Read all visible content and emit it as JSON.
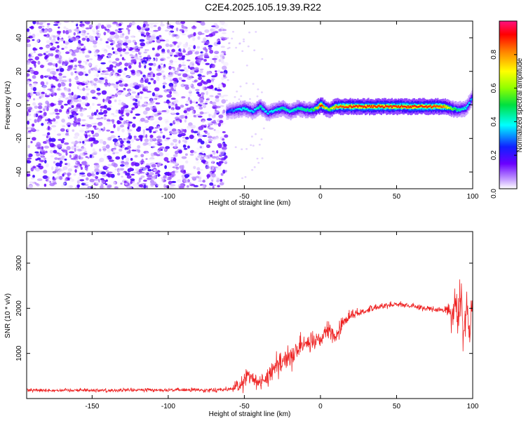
{
  "title": "C2E4.2025.105.19.39.R22",
  "chart_data": [
    {
      "type": "heatmap",
      "xlabel": "Height of straight line (km)",
      "ylabel": "Frequency (Hz)",
      "xlim": [
        -193,
        100
      ],
      "ylim": [
        -50,
        50
      ],
      "x_ticks": [
        -150,
        -100,
        -50,
        0,
        50,
        100
      ],
      "y_ticks": [
        -40,
        -20,
        0,
        20,
        40
      ],
      "colorbar": {
        "label": "Normalized spectral amplitude",
        "range": [
          0,
          1
        ],
        "ticks": [
          0.0,
          0.2,
          0.4,
          0.6,
          0.8
        ],
        "tick_labels": [
          "0.0",
          "0.2",
          "0.4",
          "0.6",
          "0.8"
        ]
      },
      "noise_region_x": [
        -193,
        -62
      ],
      "signal_line": {
        "x": [
          -62,
          -55,
          -50,
          -45,
          -40,
          -35,
          -30,
          -25,
          -20,
          -15,
          -10,
          -5,
          0,
          5,
          10,
          20,
          30,
          40,
          50,
          60,
          70,
          80,
          85,
          90,
          95,
          98,
          100
        ],
        "y": [
          -4,
          -3,
          -2,
          -4,
          -1,
          -5,
          -3,
          -2,
          -4,
          -2,
          -3,
          -3,
          0,
          -3,
          -1,
          -1,
          -1,
          -1,
          -1,
          -1,
          -1,
          -1,
          -2,
          -3,
          -2,
          2,
          6
        ],
        "amplitude": [
          0.25,
          0.35,
          0.4,
          0.35,
          0.45,
          0.35,
          0.4,
          0.45,
          0.4,
          0.45,
          0.45,
          0.5,
          0.95,
          0.55,
          0.85,
          0.9,
          0.9,
          0.9,
          0.9,
          0.9,
          0.9,
          0.85,
          0.6,
          0.45,
          0.4,
          0.35,
          0.3
        ]
      }
    },
    {
      "type": "line",
      "xlabel": "Height of straight line (km)",
      "ylabel": "SNR (10 * v/v)",
      "xlim": [
        -193,
        100
      ],
      "ylim": [
        0,
        3700
      ],
      "x_ticks": [
        -150,
        -100,
        -50,
        0,
        50,
        100
      ],
      "y_ticks": [
        1000,
        2000,
        3000
      ],
      "color": "#ee2222",
      "series": [
        {
          "x": [
            -193,
            -180,
            -160,
            -140,
            -120,
            -100,
            -80,
            -60,
            -52,
            -48,
            -44,
            -40,
            -35,
            -30,
            -25,
            -20,
            -15,
            -10,
            -5,
            0,
            5,
            10,
            15,
            20,
            25,
            30,
            40,
            50,
            60,
            70,
            80,
            84,
            86,
            88,
            90,
            92,
            94,
            96,
            98,
            100
          ],
          "y": [
            200,
            180,
            190,
            180,
            190,
            190,
            190,
            200,
            300,
            500,
            450,
            350,
            450,
            700,
            800,
            1000,
            1050,
            1300,
            1200,
            1300,
            1500,
            1350,
            1700,
            1850,
            1900,
            1950,
            2050,
            2100,
            2050,
            2000,
            1950,
            2000,
            1800,
            2200,
            1700,
            2300,
            1500,
            2100,
            1300,
            2400
          ],
          "spread": [
            100,
            100,
            100,
            100,
            100,
            100,
            100,
            120,
            400,
            450,
            400,
            300,
            450,
            600,
            550,
            650,
            600,
            600,
            500,
            400,
            400,
            450,
            400,
            250,
            200,
            180,
            150,
            150,
            150,
            150,
            150,
            300,
            800,
            1000,
            1100,
            1400,
            1200,
            1000,
            900,
            1100
          ]
        }
      ]
    }
  ]
}
